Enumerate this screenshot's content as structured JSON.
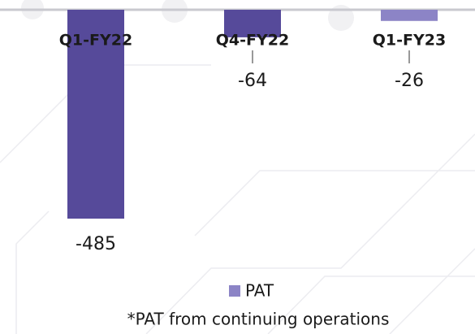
{
  "chart_data": {
    "type": "bar",
    "categories": [
      "Q1-FY22",
      "Q4-FY22",
      "Q1-FY23"
    ],
    "series": [
      {
        "name": "PAT",
        "color": "#8c84c6",
        "values": [
          -485,
          -64,
          -26
        ]
      }
    ],
    "bar_colors": [
      "#564a9a",
      "#564a9a",
      "#8c84c6"
    ],
    "ylim": [
      -500,
      0
    ],
    "footnote": "*PAT from continuing operations"
  }
}
